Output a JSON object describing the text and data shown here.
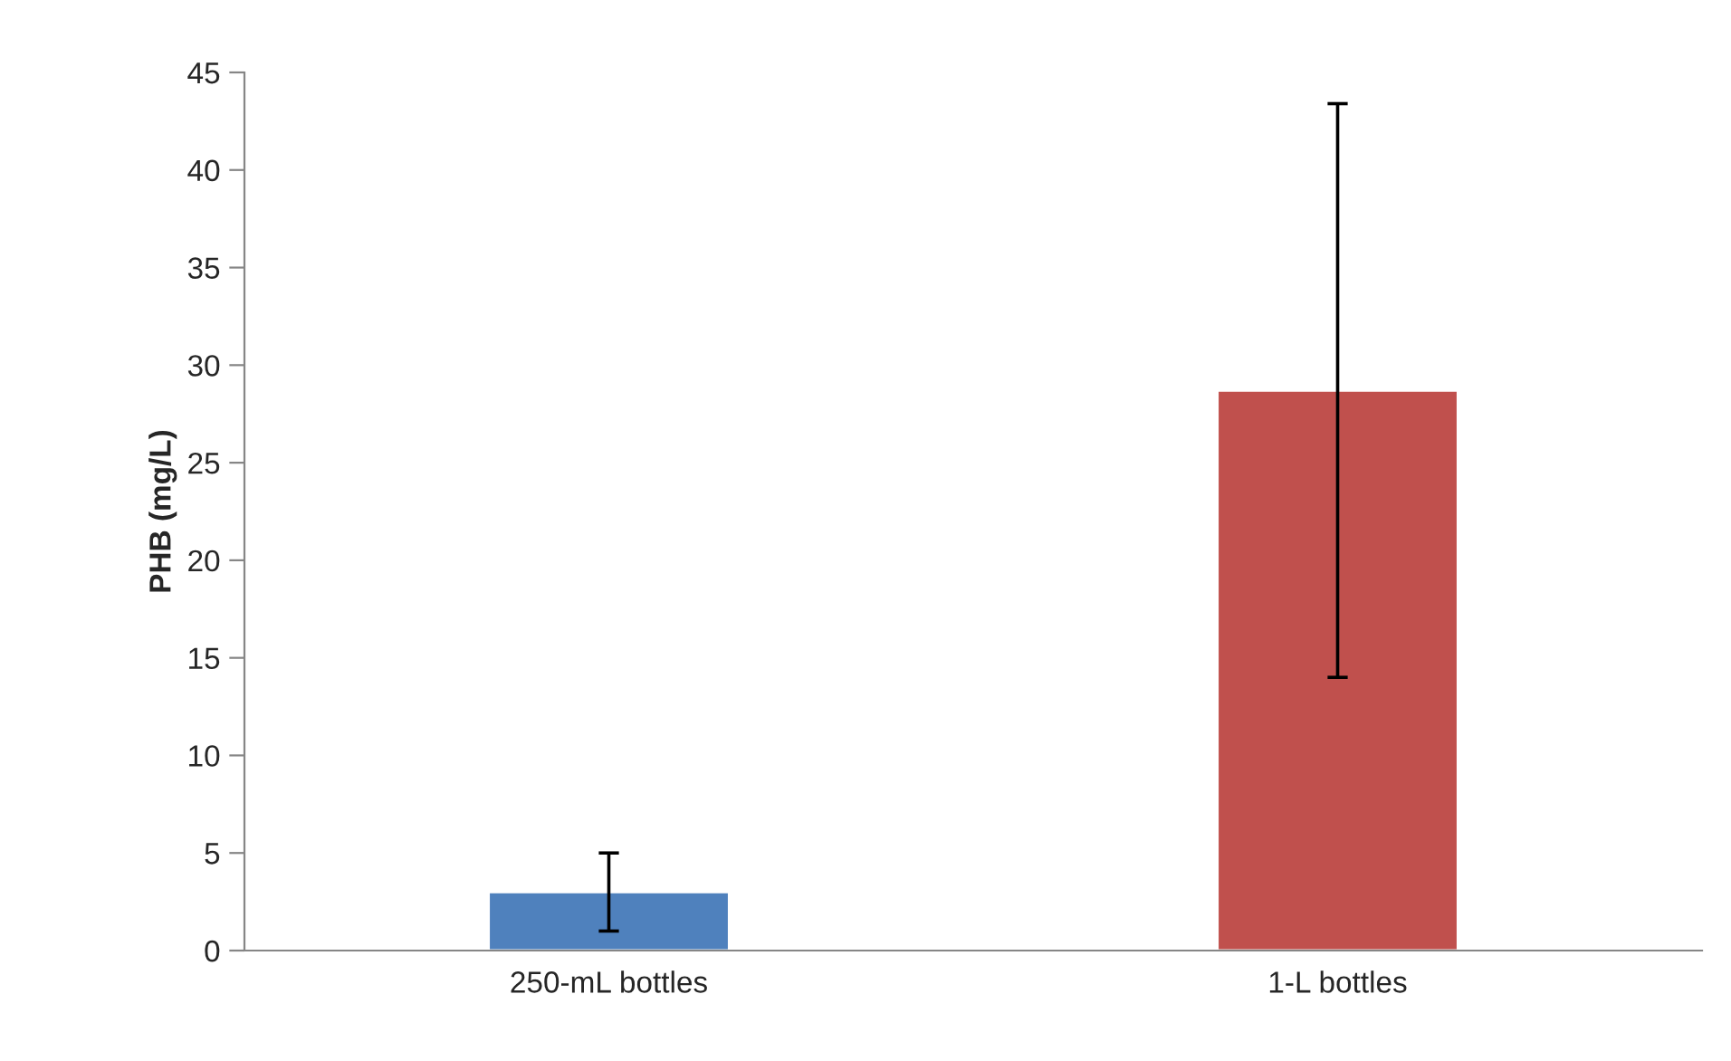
{
  "chart_data": {
    "type": "bar",
    "ylabel": "PHB (mg/L)",
    "categories": [
      "250-mL bottles",
      "1-L bottles"
    ],
    "values": [
      3.0,
      28.7
    ],
    "colors": [
      "#4f81bd",
      "#c0504d"
    ],
    "errors": [
      2.0,
      14.7
    ],
    "ylim": [
      0,
      45
    ],
    "yticks": [
      0,
      5,
      10,
      15,
      20,
      25,
      30,
      35,
      40,
      45
    ],
    "grid": false,
    "legend": false
  }
}
